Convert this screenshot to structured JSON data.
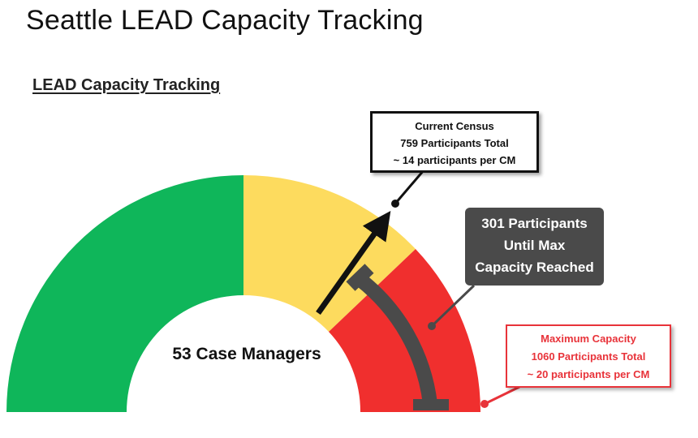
{
  "slide_title": "Seattle LEAD Capacity Tracking",
  "subtitle": "LEAD Capacity Tracking",
  "gauge": {
    "center_label": "53 Case Managers",
    "colors": {
      "green": "#0fb65a",
      "yellow": "#fddb5e",
      "red": "#f02f2e",
      "pointer": "#111111",
      "bracket": "#4a4a4a",
      "max_marker": "#e8333a"
    },
    "current_census": 759,
    "maximum_capacity": 1060
  },
  "callouts": {
    "census": {
      "line1": "Current Census",
      "line2": "759 Participants Total",
      "line3": "~ 14 participants per CM"
    },
    "remaining": {
      "line1": "301 Participants",
      "line2": "Until Max",
      "line3": "Capacity Reached"
    },
    "maximum": {
      "line1": "Maximum Capacity",
      "line2": "1060 Participants Total",
      "line3": "~ 20 participants per CM"
    }
  }
}
